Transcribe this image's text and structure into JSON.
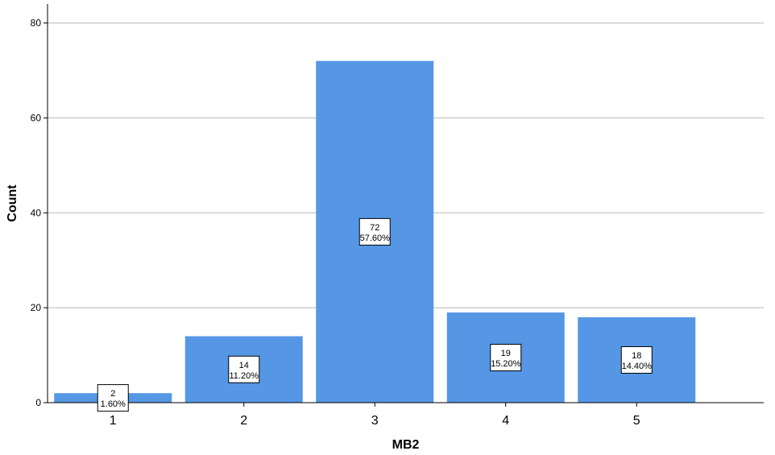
{
  "chart_data": {
    "type": "bar",
    "xlabel": "MB2",
    "ylabel": "Count",
    "categories": [
      "1",
      "2",
      "3",
      "4",
      "5"
    ],
    "values": [
      2,
      14,
      72,
      19,
      18
    ],
    "percent_labels": [
      "1.60%",
      "11.20%",
      "57.60%",
      "15.20%",
      "14.40%"
    ],
    "ylim": [
      0,
      84
    ],
    "yticks": [
      0,
      20,
      40,
      60,
      80
    ],
    "grid": true,
    "bar_color": "#5597e4",
    "legend": "none"
  }
}
